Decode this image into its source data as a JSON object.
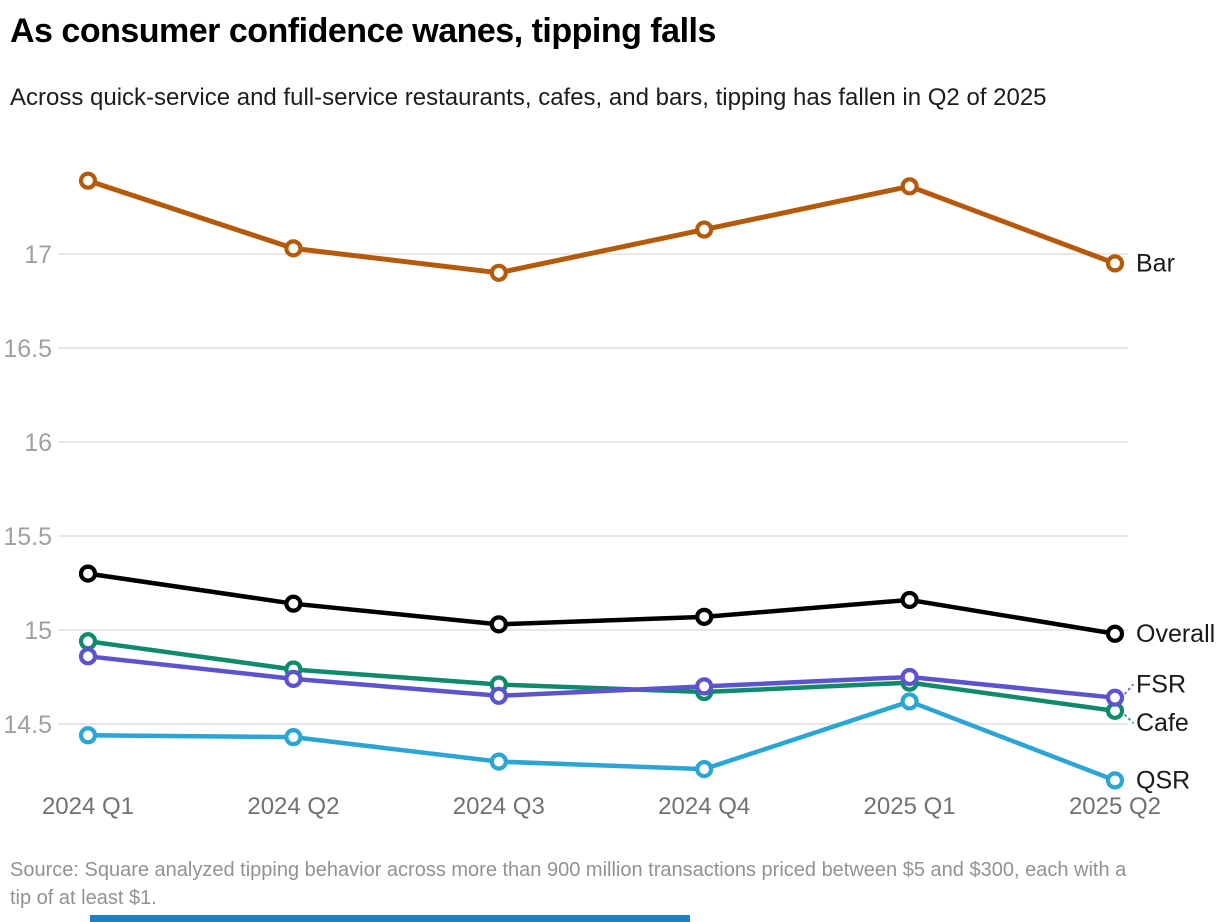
{
  "page": {
    "title": "As consumer confidence wanes, tipping falls",
    "subtitle": "Across quick-service and full-service restaurants, cafes, and bars, tipping has fallen in Q2 of 2025",
    "source": "Source: Square analyzed tipping behavior across more than 900 million transactions priced between $5 and $300, each with a tip of at least $1.",
    "accent_bar_color": "#1e7ec8"
  },
  "chart_data": {
    "type": "line",
    "title": "As consumer confidence wanes, tipping falls",
    "subtitle": "Across quick-service and full-service restaurants, cafes, and bars, tipping has fallen in Q2 of 2025",
    "xlabel": "",
    "ylabel": "",
    "categories": [
      "2024 Q1",
      "2024 Q2",
      "2024 Q3",
      "2024 Q4",
      "2025 Q1",
      "2025 Q2"
    ],
    "y_ticks": [
      14.5,
      15,
      15.5,
      16,
      16.5,
      17
    ],
    "ylim": [
      14.1,
      17.55
    ],
    "grid": true,
    "legend_position": "right-end-labels",
    "colors": {
      "grid": "#e8e8e8",
      "y_tick_label": "#a0a0a0",
      "x_tick_label": "#717171",
      "series_label": "#1a1a1a"
    },
    "series": [
      {
        "name": "Bar",
        "color": "#b45a0a",
        "values": [
          17.39,
          17.03,
          16.9,
          17.13,
          17.36,
          16.95
        ],
        "label_offset": 0,
        "leader": false
      },
      {
        "name": "Overall",
        "color": "#000000",
        "values": [
          15.3,
          15.14,
          15.03,
          15.07,
          15.16,
          14.98
        ],
        "label_offset": 0,
        "leader": false
      },
      {
        "name": "Cafe",
        "color": "#0f8a6c",
        "values": [
          14.94,
          14.79,
          14.71,
          14.67,
          14.72,
          14.57
        ],
        "label_offset": 12,
        "leader": true
      },
      {
        "name": "FSR",
        "color": "#5c53cf",
        "values": [
          14.86,
          14.74,
          14.65,
          14.7,
          14.75,
          14.64
        ],
        "label_offset": -13,
        "leader": true
      },
      {
        "name": "QSR",
        "color": "#2aa5d6",
        "values": [
          14.44,
          14.43,
          14.3,
          14.26,
          14.62,
          14.2
        ],
        "label_offset": 0,
        "leader": false
      }
    ]
  }
}
